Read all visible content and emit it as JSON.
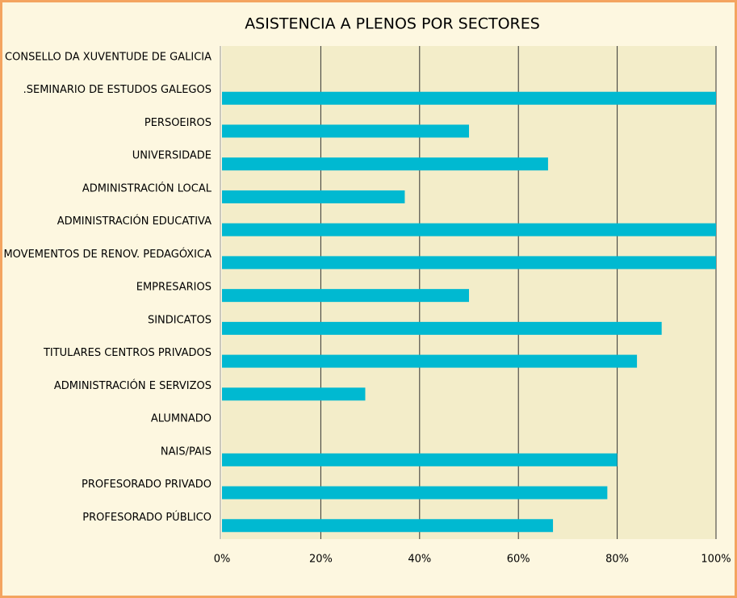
{
  "chart_data": {
    "type": "barh",
    "title": "ASISTENCIA A PLENOS POR SECTORES",
    "categories": [
      "CONSELLO DA XUVENTUDE DE GALICIA",
      ".SEMINARIO DE ESTUDOS GALEGOS",
      "PERSOEIROS",
      "UNIVERSIDADE",
      "ADMINISTRACIÓN LOCAL",
      "ADMINISTRACIÓN EDUCATIVA",
      "MOVEMENTOS DE RENOV. PEDAGÓXICA",
      "EMPRESARIOS",
      "SINDICATOS",
      "TITULARES CENTROS PRIVADOS",
      "ADMINISTRACIÓN E SERVIZOS",
      "ALUMNADO",
      "NAIS/PAIS",
      "PROFESORADO PRIVADO",
      "PROFESORADO PÚBLICO"
    ],
    "values": [
      0,
      100,
      50,
      66,
      37,
      100,
      100,
      50,
      89,
      84,
      29,
      0,
      80,
      78,
      67
    ],
    "color": "#00b9d1",
    "xlim": [
      0,
      100
    ],
    "xticks": [
      {
        "value": 0,
        "label": "0%"
      },
      {
        "value": 20,
        "label": "20%"
      },
      {
        "value": 40,
        "label": "40%"
      },
      {
        "value": 60,
        "label": "60%"
      },
      {
        "value": 80,
        "label": "80%"
      },
      {
        "value": 100,
        "label": "100%"
      }
    ],
    "grid": true
  }
}
